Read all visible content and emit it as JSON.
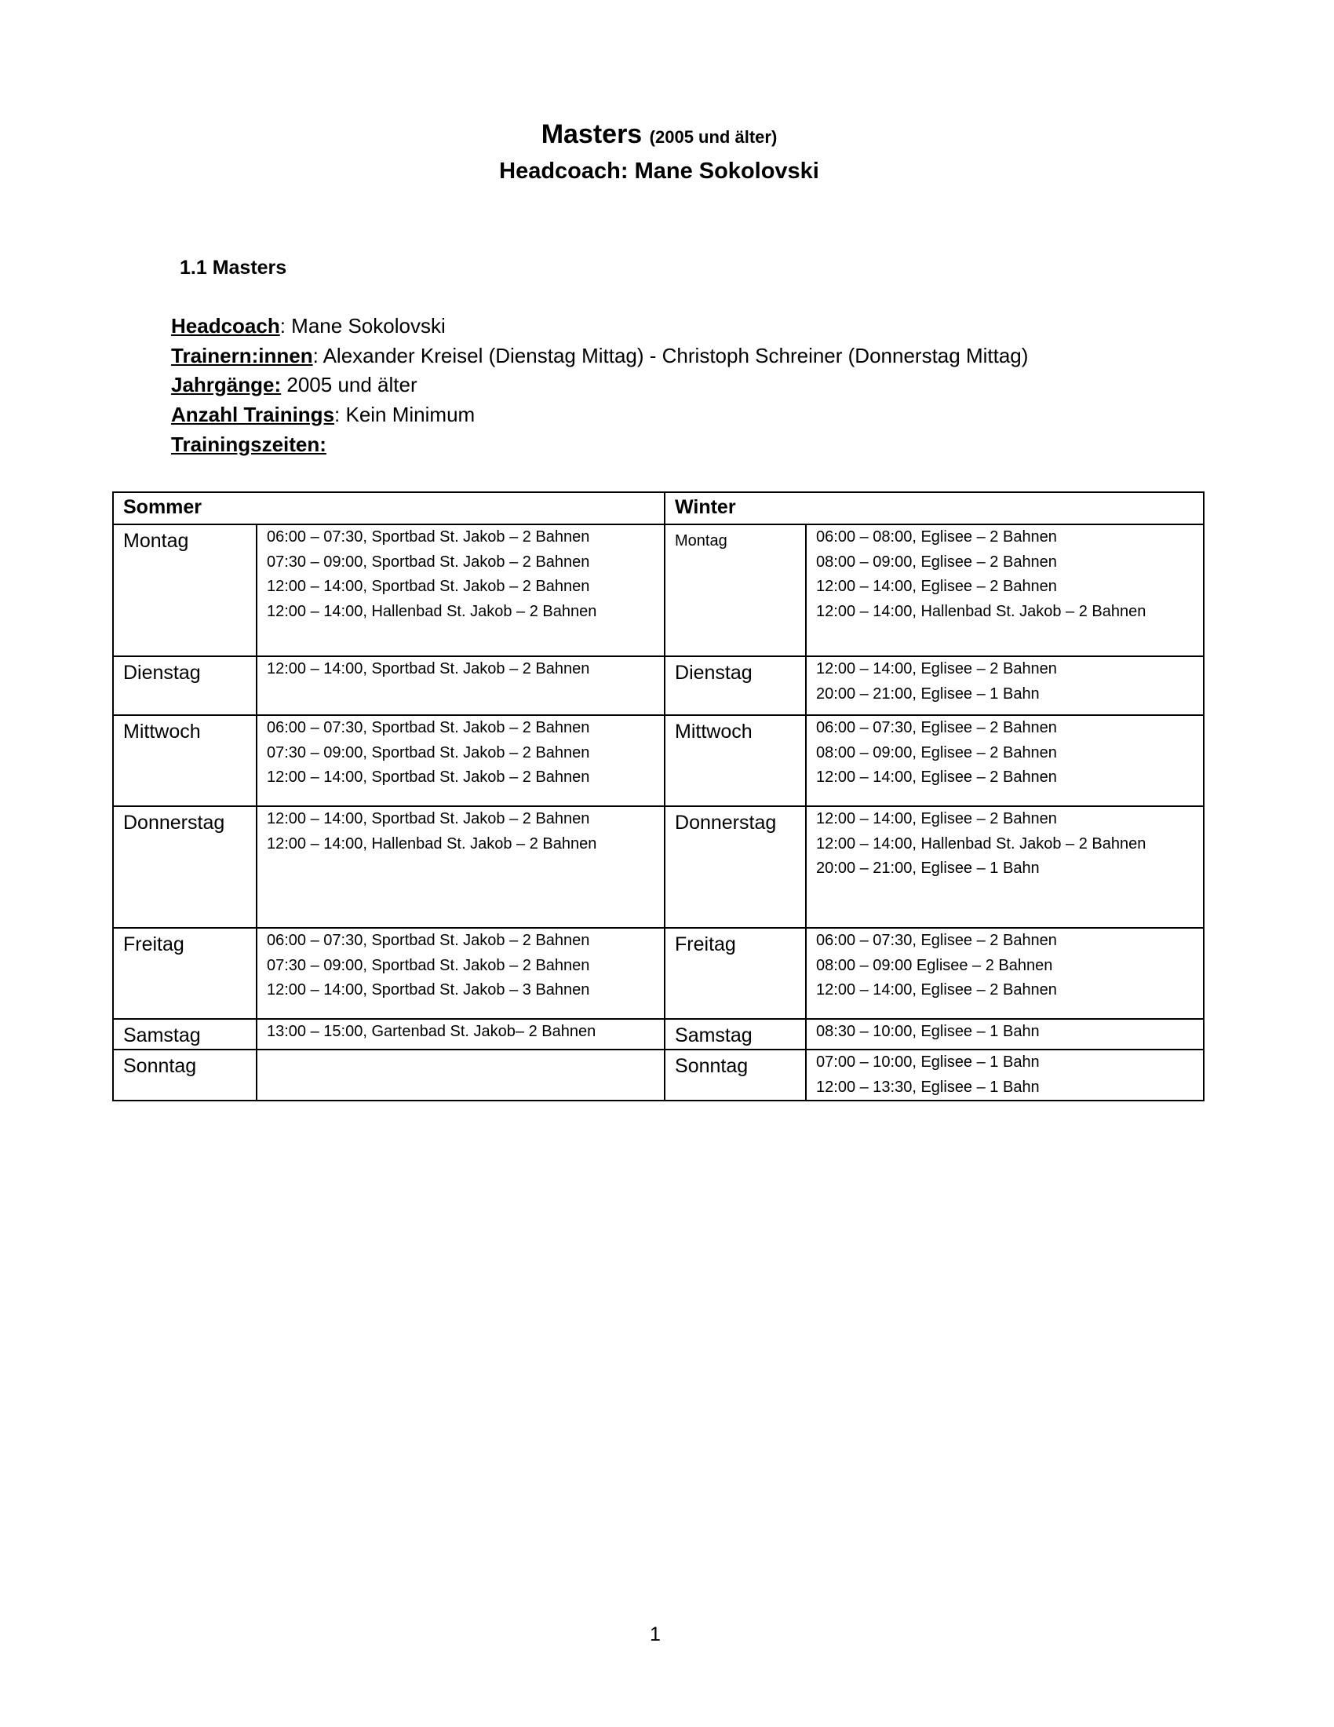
{
  "title": {
    "main": "Masters",
    "sub": "(2005 und älter)",
    "headcoach": "Headcoach: Mane Sokolovski"
  },
  "section": "1.1 Masters",
  "info": [
    {
      "key": "Headcoach",
      "value": ": Mane Sokolovski"
    },
    {
      "key": "Trainern:innen",
      "value": ": Alexander Kreisel (Dienstag Mittag) - Christoph Schreiner (Donnerstag Mittag)"
    },
    {
      "key": "Jahrgänge:",
      "value": " 2005 und älter"
    },
    {
      "key": "Anzahl Trainings",
      "value": ": Kein Minimum"
    },
    {
      "key": "Trainingszeiten:",
      "value": ""
    }
  ],
  "table": {
    "summer_header": "Sommer",
    "winter_header": "Winter",
    "rows": [
      {
        "summer_day": "Montag",
        "summer": [
          "06:00 – 07:30, Sportbad St. Jakob – 2 Bahnen",
          "07:30 – 09:00, Sportbad St. Jakob – 2 Bahnen",
          "12:00 – 14:00, Sportbad St. Jakob – 2 Bahnen",
          "12:00 – 14:00, Hallenbad St. Jakob – 2 Bahnen"
        ],
        "winter_day": "Montag",
        "winter": [
          "06:00 – 08:00, Eglisee – 2 Bahnen",
          "08:00 – 09:00, Eglisee – 2 Bahnen",
          "12:00 – 14:00, Eglisee – 2 Bahnen",
          "12:00 – 14:00, Hallenbad St. Jakob – 2 Bahnen"
        ]
      },
      {
        "summer_day": "Dienstag",
        "summer": [
          "12:00 – 14:00, Sportbad St. Jakob – 2 Bahnen"
        ],
        "winter_day": "Dienstag",
        "winter": [
          "12:00 – 14:00, Eglisee – 2 Bahnen",
          "20:00 – 21:00, Eglisee – 1 Bahn"
        ]
      },
      {
        "summer_day": "Mittwoch",
        "summer": [
          "06:00 – 07:30, Sportbad St. Jakob – 2 Bahnen",
          "07:30 – 09:00, Sportbad St. Jakob – 2 Bahnen",
          "12:00 – 14:00, Sportbad St. Jakob – 2 Bahnen"
        ],
        "winter_day": "Mittwoch",
        "winter": [
          "06:00 – 07:30, Eglisee – 2 Bahnen",
          "08:00 – 09:00, Eglisee – 2 Bahnen",
          "12:00 – 14:00, Eglisee – 2 Bahnen"
        ]
      },
      {
        "summer_day": "Donnerstag",
        "summer": [
          "12:00 – 14:00, Sportbad St. Jakob – 2 Bahnen",
          "12:00 – 14:00, Hallenbad St. Jakob – 2 Bahnen"
        ],
        "winter_day": "Donnerstag",
        "winter": [
          "12:00 – 14:00, Eglisee – 2 Bahnen",
          "12:00 – 14:00, Hallenbad St. Jakob – 2 Bahnen",
          "20:00 – 21:00, Eglisee – 1 Bahn"
        ]
      },
      {
        "summer_day": "Freitag",
        "summer": [
          "06:00 – 07:30, Sportbad St. Jakob – 2 Bahnen",
          "07:30 – 09:00, Sportbad St. Jakob – 2 Bahnen",
          "12:00 – 14:00, Sportbad St. Jakob – 3 Bahnen"
        ],
        "winter_day": "Freitag",
        "winter": [
          "06:00 – 07:30, Eglisee – 2 Bahnen",
          "08:00 – 09:00 Eglisee – 2 Bahnen",
          "12:00 – 14:00, Eglisee – 2 Bahnen"
        ]
      },
      {
        "summer_day": "Samstag",
        "summer": [
          "13:00 – 15:00, Gartenbad St. Jakob– 2 Bahnen"
        ],
        "winter_day": "Samstag",
        "winter": [
          "08:30 – 10:00, Eglisee – 1 Bahn"
        ]
      },
      {
        "summer_day": "Sonntag",
        "summer": [],
        "winter_day": "Sonntag",
        "winter": [
          "07:00 – 10:00, Eglisee – 1 Bahn",
          "12:00 – 13:30, Eglisee – 1 Bahn"
        ]
      }
    ]
  },
  "page_number": "1"
}
